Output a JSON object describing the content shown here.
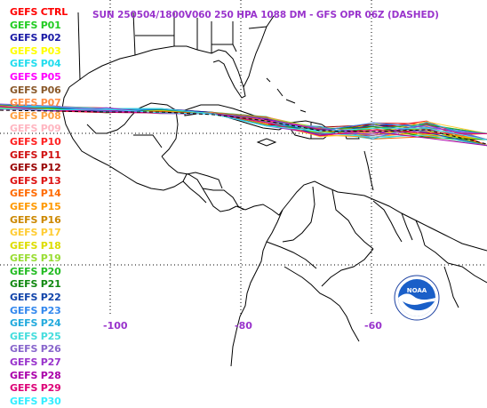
{
  "title": "SUN 250504/1800V060  250 HPA 1088 DM - GFS OPR 06Z (DASHED)",
  "legend": [
    {
      "label": "GEFS CTRL",
      "color": "#ff0000"
    },
    {
      "label": "GEFS P01",
      "color": "#22cc22"
    },
    {
      "label": "GEFS P02",
      "color": "#1a1aa6"
    },
    {
      "label": "GEFS P03",
      "color": "#ffff00"
    },
    {
      "label": "GEFS P04",
      "color": "#22ddee"
    },
    {
      "label": "GEFS P05",
      "color": "#ff00ff"
    },
    {
      "label": "GEFS P06",
      "color": "#8b5a2b"
    },
    {
      "label": "GEFS P07",
      "color": "#ff8c42"
    },
    {
      "label": "GEFS P08",
      "color": "#ffa040"
    },
    {
      "label": "GEFS P09",
      "color": "#ffb6c1"
    },
    {
      "label": "GEFS P10",
      "color": "#ff2020"
    },
    {
      "label": "GEFS P11",
      "color": "#d01010"
    },
    {
      "label": "GEFS P12",
      "color": "#990000"
    },
    {
      "label": "GEFS P13",
      "color": "#dd1111"
    },
    {
      "label": "GEFS P14",
      "color": "#ff6a00"
    },
    {
      "label": "GEFS P15",
      "color": "#ff9900"
    },
    {
      "label": "GEFS P16",
      "color": "#cc8800"
    },
    {
      "label": "GEFS P17",
      "color": "#ffcc33"
    },
    {
      "label": "GEFS P18",
      "color": "#dddd00"
    },
    {
      "label": "GEFS P19",
      "color": "#99dd33"
    },
    {
      "label": "GEFS P20",
      "color": "#22bb22"
    },
    {
      "label": "GEFS P21",
      "color": "#118811"
    },
    {
      "label": "GEFS P22",
      "color": "#1144aa"
    },
    {
      "label": "GEFS P23",
      "color": "#3388ee"
    },
    {
      "label": "GEFS P24",
      "color": "#22aadd"
    },
    {
      "label": "GEFS P25",
      "color": "#44dddd"
    },
    {
      "label": "GEFS P26",
      "color": "#8866cc"
    },
    {
      "label": "GEFS P27",
      "color": "#9933cc"
    },
    {
      "label": "GEFS P28",
      "color": "#aa00aa"
    },
    {
      "label": "GEFS P29",
      "color": "#dd0077"
    },
    {
      "label": "GEFS P30",
      "color": "#33eeff"
    }
  ],
  "longitude_labels": [
    "-100",
    "-80",
    "-60"
  ],
  "colors": {
    "axis_label": "#9933cc",
    "coastline": "#000000",
    "background": "#ffffff"
  },
  "logo": {
    "name": "noaa-logo",
    "text": "NOAA"
  }
}
